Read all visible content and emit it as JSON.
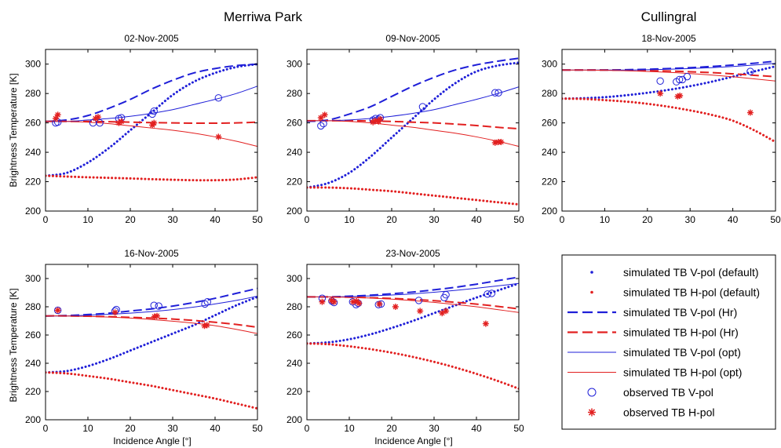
{
  "figure": {
    "site_titles": [
      "Merriwa Park",
      "Cullingral"
    ],
    "ylabel": "Brightness Temperature [K]",
    "xlabel": "Incidence Angle [°]"
  },
  "legend": {
    "entries": [
      {
        "label": "simulated TB V-pol (default)",
        "style": "dot",
        "color": "#1f1fd8"
      },
      {
        "label": "simulated TB H-pol (default)",
        "style": "dot",
        "color": "#e22020"
      },
      {
        "label": "simulated TB V-pol (Hr)",
        "style": "dash",
        "color": "#1f1fd8"
      },
      {
        "label": "simulated TB H-pol (Hr)",
        "style": "dash",
        "color": "#e22020"
      },
      {
        "label": "simulated TB V-pol (opt)",
        "style": "solid",
        "color": "#1f1fd8"
      },
      {
        "label": "simulated TB H-pol (opt)",
        "style": "solid",
        "color": "#e22020"
      },
      {
        "label": "observed TB V-pol",
        "style": "circle",
        "color": "#1f1fd8"
      },
      {
        "label": "observed TB H-pol",
        "style": "star",
        "color": "#e22020"
      }
    ]
  },
  "chart_data": [
    {
      "type": "line",
      "title": "02-Nov-2005",
      "xlim": [
        0,
        50
      ],
      "ylim": [
        200,
        310
      ],
      "xticks": [
        0,
        10,
        20,
        30,
        40,
        50
      ],
      "yticks": [
        200,
        220,
        240,
        260,
        280,
        300
      ],
      "x": [
        0,
        5,
        10,
        15,
        20,
        25,
        30,
        35,
        40,
        45,
        50
      ],
      "series": [
        {
          "name": "simulated TB V-pol (default)",
          "style": "dot",
          "values": [
            224,
            226,
            233,
            243,
            255,
            267,
            279,
            288,
            294,
            298,
            300
          ]
        },
        {
          "name": "simulated TB H-pol (default)",
          "style": "dot",
          "values": [
            224,
            223.5,
            223,
            222.6,
            222.2,
            221.7,
            221.3,
            221,
            221,
            221.5,
            223
          ]
        },
        {
          "name": "simulated TB V-pol (Hr)",
          "style": "dash",
          "values": [
            261,
            262,
            265,
            270,
            276,
            283,
            289,
            294,
            297,
            299,
            300
          ]
        },
        {
          "name": "simulated TB H-pol (Hr)",
          "style": "dash",
          "values": [
            261,
            261,
            261,
            260.8,
            260.5,
            260.2,
            260,
            259.8,
            259.8,
            260,
            260.5
          ]
        },
        {
          "name": "simulated TB V-pol (opt)",
          "style": "solid",
          "values": [
            261,
            261,
            262,
            263,
            264.5,
            266.5,
            269,
            272.5,
            276,
            280,
            285
          ]
        },
        {
          "name": "simulated TB H-pol (opt)",
          "style": "solid",
          "values": [
            261,
            261,
            260.5,
            259.5,
            258,
            256.5,
            255,
            253,
            250.5,
            247.5,
            244
          ]
        }
      ],
      "obs_v": [
        [
          2.4,
          260
        ],
        [
          2.9,
          260.5
        ],
        [
          11.2,
          260
        ],
        [
          12.8,
          260
        ],
        [
          17.3,
          263
        ],
        [
          17.9,
          263.5
        ],
        [
          25.2,
          266
        ],
        [
          25.6,
          268
        ],
        [
          40.8,
          277
        ]
      ],
      "obs_h": [
        [
          2.4,
          263
        ],
        [
          2.9,
          265.5
        ],
        [
          11.8,
          263
        ],
        [
          12.4,
          264
        ],
        [
          17.3,
          260
        ],
        [
          17.9,
          261
        ],
        [
          25.2,
          258.5
        ],
        [
          25.6,
          260
        ],
        [
          40.8,
          250.5
        ]
      ]
    },
    {
      "type": "line",
      "title": "09-Nov-2005",
      "xlim": [
        0,
        50
      ],
      "ylim": [
        200,
        310
      ],
      "xticks": [
        0,
        10,
        20,
        30,
        40,
        50
      ],
      "yticks": [
        200,
        220,
        240,
        260,
        280,
        300
      ],
      "x": [
        0,
        5,
        10,
        15,
        20,
        25,
        30,
        35,
        40,
        45,
        50
      ],
      "series": [
        {
          "name": "simulated TB V-pol (default)",
          "style": "dot",
          "values": [
            216,
            219,
            226,
            237,
            250,
            263,
            276,
            287,
            295,
            299,
            301
          ]
        },
        {
          "name": "simulated TB H-pol (default)",
          "style": "dot",
          "values": [
            216,
            216,
            215.5,
            214.5,
            213.5,
            212,
            210.5,
            209,
            207.5,
            206,
            204.5
          ]
        },
        {
          "name": "simulated TB V-pol (Hr)",
          "style": "dash",
          "values": [
            261,
            262,
            266,
            271,
            278,
            285,
            291,
            296,
            299.5,
            302,
            304
          ]
        },
        {
          "name": "simulated TB H-pol (Hr)",
          "style": "dash",
          "values": [
            261.5,
            261.5,
            261.5,
            261.3,
            261,
            260.5,
            260,
            259.2,
            258.2,
            257,
            256
          ]
        },
        {
          "name": "simulated TB V-pol (opt)",
          "style": "solid",
          "values": [
            261.5,
            261.5,
            262,
            263,
            264.5,
            266.5,
            269,
            272.5,
            276,
            280,
            284.5
          ]
        },
        {
          "name": "simulated TB H-pol (opt)",
          "style": "solid",
          "values": [
            261.5,
            261.5,
            261,
            260,
            258.5,
            257,
            255,
            253,
            250.5,
            247.5,
            244
          ]
        }
      ],
      "obs_v": [
        [
          3.3,
          258
        ],
        [
          3.9,
          259.5
        ],
        [
          15.6,
          262
        ],
        [
          16.2,
          263
        ],
        [
          16.9,
          262.5
        ],
        [
          17.3,
          263.5
        ],
        [
          27.3,
          271
        ],
        [
          44.4,
          280.5
        ],
        [
          45.2,
          280.5
        ]
      ],
      "obs_h": [
        [
          3.3,
          263.5
        ],
        [
          4.2,
          265.5
        ],
        [
          15.6,
          260.5
        ],
        [
          16.2,
          261.5
        ],
        [
          16.9,
          261
        ],
        [
          17.3,
          262.5
        ],
        [
          44.4,
          246.5
        ],
        [
          45.2,
          247
        ],
        [
          45.8,
          247
        ]
      ]
    },
    {
      "type": "line",
      "title": "18-Nov-2005",
      "xlim": [
        0,
        50
      ],
      "ylim": [
        200,
        310
      ],
      "xticks": [
        0,
        10,
        20,
        30,
        40,
        50
      ],
      "yticks": [
        200,
        220,
        240,
        260,
        280,
        300
      ],
      "x": [
        0,
        5,
        10,
        15,
        20,
        25,
        30,
        35,
        40,
        45,
        50
      ],
      "series": [
        {
          "name": "simulated TB V-pol (default)",
          "style": "dot",
          "values": [
            276.5,
            276.8,
            277.5,
            278.8,
            280.5,
            282.5,
            285,
            288,
            291.5,
            295,
            298.5
          ]
        },
        {
          "name": "simulated TB H-pol (default)",
          "style": "dot",
          "values": [
            276.5,
            276.3,
            275.5,
            274.5,
            273,
            271,
            268.5,
            265.5,
            261.5,
            255,
            247
          ]
        },
        {
          "name": "simulated TB V-pol (Hr)",
          "style": "dash",
          "values": [
            296,
            296,
            296,
            296.2,
            296.5,
            297,
            297.6,
            298.4,
            299.4,
            300.6,
            302
          ]
        },
        {
          "name": "simulated TB H-pol (Hr)",
          "style": "dash",
          "values": [
            296,
            296,
            296,
            295.8,
            295.6,
            295.3,
            294.8,
            294.2,
            293.4,
            292.4,
            291.5
          ]
        },
        {
          "name": "simulated TB V-pol (opt)",
          "style": "solid",
          "values": [
            296,
            296,
            296,
            296,
            296.2,
            296.5,
            297,
            297.6,
            298.4,
            299.4,
            300.5
          ]
        },
        {
          "name": "simulated TB H-pol (opt)",
          "style": "solid",
          "values": [
            296,
            296,
            295.8,
            295.5,
            295,
            294.4,
            293.6,
            292.6,
            291.4,
            290,
            288.5
          ]
        }
      ],
      "obs_v": [
        [
          23,
          288.5
        ],
        [
          26.8,
          288
        ],
        [
          27.5,
          289.5
        ],
        [
          28.2,
          289.5
        ],
        [
          29.3,
          291.5
        ],
        [
          44.1,
          295
        ]
      ],
      "obs_h": [
        [
          23,
          280
        ],
        [
          27.1,
          278
        ],
        [
          27.6,
          278.5
        ],
        [
          44.1,
          267
        ]
      ]
    },
    {
      "type": "line",
      "title": "16-Nov-2005",
      "xlim": [
        0,
        50
      ],
      "ylim": [
        200,
        310
      ],
      "xticks": [
        0,
        10,
        20,
        30,
        40,
        50
      ],
      "yticks": [
        200,
        220,
        240,
        260,
        280,
        300
      ],
      "x": [
        0,
        5,
        10,
        15,
        20,
        25,
        30,
        35,
        40,
        45,
        50
      ],
      "series": [
        {
          "name": "simulated TB V-pol (default)",
          "style": "dot",
          "values": [
            233.5,
            234.5,
            238,
            243,
            249,
            255,
            261,
            267,
            274,
            281,
            287
          ]
        },
        {
          "name": "simulated TB H-pol (default)",
          "style": "dot",
          "values": [
            233.5,
            232.8,
            231,
            229,
            226.5,
            224,
            221,
            218,
            215,
            211.5,
            208
          ]
        },
        {
          "name": "simulated TB V-pol (Hr)",
          "style": "dash",
          "values": [
            273.5,
            273.8,
            274.5,
            275.5,
            277,
            278.5,
            280.5,
            283,
            286,
            289.5,
            293
          ]
        },
        {
          "name": "simulated TB H-pol (Hr)",
          "style": "dash",
          "values": [
            273.5,
            273.5,
            273.3,
            273,
            272.5,
            272,
            271.3,
            270.3,
            269,
            267.5,
            265.5
          ]
        },
        {
          "name": "simulated TB V-pol (opt)",
          "style": "solid",
          "values": [
            273.5,
            273.5,
            274,
            274.7,
            275.5,
            276.6,
            278,
            279.8,
            282,
            284.5,
            287.5
          ]
        },
        {
          "name": "simulated TB H-pol (opt)",
          "style": "solid",
          "values": [
            273.5,
            273.5,
            273.2,
            272.7,
            272,
            271,
            269.8,
            268.4,
            266.6,
            264,
            261
          ]
        }
      ],
      "obs_v": [
        [
          2.9,
          277.5
        ],
        [
          16.4,
          277
        ],
        [
          16.7,
          278
        ],
        [
          25.6,
          281
        ],
        [
          26.7,
          280.5
        ],
        [
          37.6,
          282
        ],
        [
          38.2,
          283.5
        ]
      ],
      "obs_h": [
        [
          2.9,
          277.5
        ],
        [
          16.4,
          276
        ],
        [
          25.7,
          273
        ],
        [
          26.3,
          273.5
        ],
        [
          37.5,
          266.5
        ],
        [
          38.1,
          267
        ]
      ]
    },
    {
      "type": "line",
      "title": "23-Nov-2005",
      "xlim": [
        0,
        50
      ],
      "ylim": [
        200,
        310
      ],
      "xticks": [
        0,
        10,
        20,
        30,
        40,
        50
      ],
      "yticks": [
        200,
        220,
        240,
        260,
        280,
        300
      ],
      "x": [
        0,
        5,
        10,
        15,
        20,
        25,
        30,
        35,
        40,
        45,
        50
      ],
      "series": [
        {
          "name": "simulated TB V-pol (default)",
          "style": "dot",
          "values": [
            254,
            254.8,
            257,
            260.5,
            265,
            270,
            275.5,
            281,
            286.5,
            291.5,
            296.5
          ]
        },
        {
          "name": "simulated TB H-pol (default)",
          "style": "dot",
          "values": [
            254,
            253.5,
            252,
            250,
            247.5,
            244.5,
            241,
            237,
            232.5,
            227.5,
            222
          ]
        },
        {
          "name": "simulated TB V-pol (Hr)",
          "style": "dash",
          "values": [
            287,
            287,
            287.5,
            288.2,
            289.2,
            290.4,
            292,
            293.8,
            296,
            298.5,
            301
          ]
        },
        {
          "name": "simulated TB H-pol (Hr)",
          "style": "dash",
          "values": [
            287,
            287,
            286.8,
            286.4,
            285.9,
            285.2,
            284.3,
            283.2,
            281.9,
            280.3,
            278.5
          ]
        },
        {
          "name": "simulated TB V-pol (opt)",
          "style": "solid",
          "values": [
            287,
            287,
            287.2,
            287.7,
            288.3,
            289.2,
            290.3,
            291.6,
            293.1,
            294.8,
            296.5
          ]
        },
        {
          "name": "simulated TB H-pol (opt)",
          "style": "solid",
          "values": [
            287,
            287,
            286.7,
            286.2,
            285.4,
            284.4,
            283.1,
            281.6,
            280,
            278,
            276
          ]
        }
      ],
      "obs_v": [
        [
          3.6,
          286
        ],
        [
          5.9,
          284
        ],
        [
          6.4,
          283
        ],
        [
          10.8,
          283.5
        ],
        [
          11.6,
          281.5
        ],
        [
          12.1,
          282.5
        ],
        [
          16.9,
          281.5
        ],
        [
          17.5,
          282
        ],
        [
          26.4,
          284.5
        ],
        [
          32.4,
          286.5
        ],
        [
          32.8,
          288.5
        ],
        [
          42.6,
          289
        ],
        [
          43.6,
          289.5
        ]
      ],
      "obs_h": [
        [
          3.6,
          283.5
        ],
        [
          5.8,
          284.5
        ],
        [
          6.4,
          283.5
        ],
        [
          10.9,
          283.5
        ],
        [
          11.7,
          284
        ],
        [
          12.3,
          282.5
        ],
        [
          17.1,
          282
        ],
        [
          20.9,
          280
        ],
        [
          26.7,
          277
        ],
        [
          31.9,
          275.5
        ],
        [
          32.8,
          277
        ],
        [
          42.2,
          268
        ]
      ]
    }
  ]
}
